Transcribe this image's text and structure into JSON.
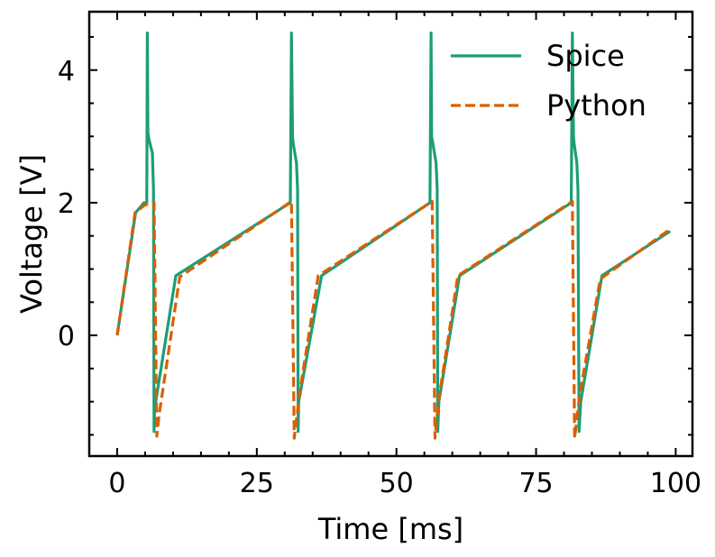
{
  "chart_data": {
    "type": "line",
    "xlabel": "Time [ms]",
    "ylabel": "Voltage [V]",
    "xlim": [
      -5,
      103
    ],
    "ylim": [
      -1.82,
      4.88
    ],
    "xticks": [
      0,
      25,
      50,
      75,
      100
    ],
    "yticks": [
      0,
      2,
      4
    ],
    "x_minor_step": 5,
    "y_minor_step": 0.5,
    "grid": false,
    "legend_position": "top-right",
    "series": [
      {
        "name": "Spice",
        "color": "#1b9e77",
        "dash": "solid",
        "x": [
          0,
          3.3,
          4.8,
          5.3,
          5.4,
          5.5,
          5.7,
          6.3,
          6.5,
          6.6,
          6.7,
          6.9,
          10.5,
          31,
          31.2,
          31.4,
          31.5,
          32.1,
          32.3,
          32.4,
          32.5,
          36.6,
          56,
          56.2,
          56.3,
          56.5,
          57.1,
          57.3,
          57.4,
          57.6,
          61.3,
          81.3,
          81.5,
          81.7,
          81.8,
          82.3,
          82.5,
          82.7,
          83,
          86.8,
          99
        ],
        "y": [
          0,
          1.85,
          2.0,
          2.0,
          4.56,
          3.05,
          2.95,
          2.75,
          2.2,
          -1.45,
          -1.1,
          -1.0,
          0.9,
          2.0,
          4.56,
          3.0,
          2.9,
          2.6,
          2.2,
          -1.45,
          -1.0,
          0.9,
          2.0,
          4.56,
          3.0,
          2.9,
          2.6,
          2.2,
          -1.45,
          -1.0,
          0.9,
          2.0,
          4.56,
          3.0,
          2.9,
          2.6,
          2.2,
          -1.45,
          -1.0,
          0.9,
          1.57
        ]
      },
      {
        "name": "Python",
        "color": "#d95f02",
        "dash": "dashed",
        "x": [
          0,
          3.2,
          4.7,
          5.8,
          6.6,
          7.1,
          7.5,
          11.2,
          31.2,
          31.7,
          32.2,
          32.6,
          36,
          56.4,
          56.9,
          57.3,
          57.7,
          61,
          81.5,
          81.9,
          82.4,
          82.8,
          86.5,
          99
        ],
        "y": [
          0,
          1.85,
          1.95,
          2.0,
          2.0,
          -1.52,
          -1.2,
          0.88,
          2.02,
          -1.55,
          -1.2,
          -0.9,
          0.9,
          2.02,
          -1.55,
          -1.2,
          -0.9,
          0.9,
          2.02,
          -1.55,
          -1.2,
          -0.9,
          0.85,
          1.6
        ]
      }
    ]
  }
}
